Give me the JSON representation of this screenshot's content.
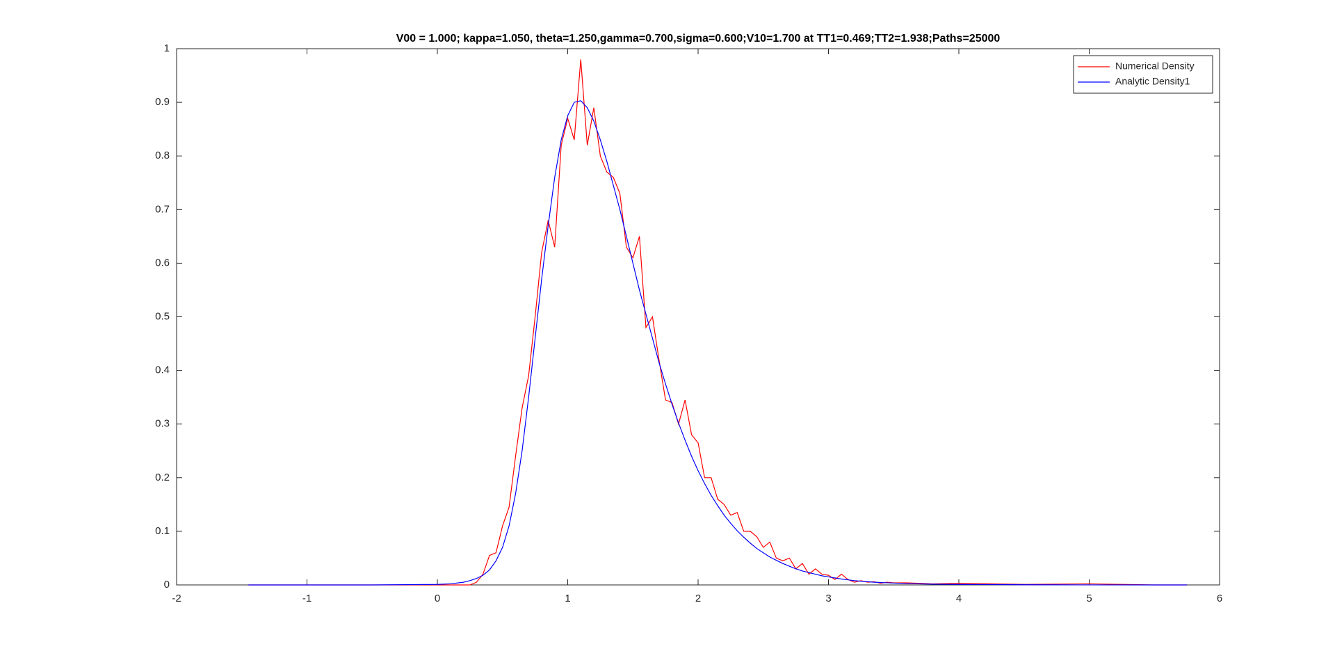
{
  "chart_data": {
    "type": "line",
    "title": "V00 = 1.000; kappa=1.050, theta=1.250,gamma=0.700,sigma=0.600;V10=1.700 at TT1=0.469;TT2=1.938;Paths=25000",
    "x": [
      -1.45,
      -1,
      -0.5,
      0,
      0.1,
      0.2,
      0.25,
      0.3,
      0.35,
      0.4,
      0.45,
      0.5,
      0.55,
      0.6,
      0.65,
      0.7,
      0.75,
      0.8,
      0.85,
      0.9,
      0.95,
      1,
      1.05,
      1.1,
      1.15,
      1.2,
      1.25,
      1.3,
      1.35,
      1.4,
      1.45,
      1.5,
      1.55,
      1.6,
      1.65,
      1.7,
      1.75,
      1.8,
      1.85,
      1.9,
      1.95,
      2,
      2.05,
      2.1,
      2.15,
      2.2,
      2.25,
      2.3,
      2.35,
      2.4,
      2.45,
      2.5,
      2.55,
      2.6,
      2.65,
      2.7,
      2.75,
      2.8,
      2.85,
      2.9,
      2.95,
      3,
      3.05,
      3.1,
      3.15,
      3.2,
      3.25,
      3.3,
      3.35,
      3.4,
      3.45,
      3.5,
      3.6,
      3.8,
      4,
      4.5,
      5,
      5.5,
      5.75
    ],
    "series": [
      {
        "name": "Numerical Density",
        "color": "#ff0000",
        "values": [
          0,
          0,
          0,
          0,
          0,
          0,
          0,
          0.005,
          0.02,
          0.055,
          0.06,
          0.11,
          0.145,
          0.24,
          0.33,
          0.39,
          0.5,
          0.62,
          0.68,
          0.63,
          0.82,
          0.87,
          0.83,
          0.98,
          0.82,
          0.89,
          0.8,
          0.77,
          0.76,
          0.73,
          0.63,
          0.61,
          0.65,
          0.48,
          0.5,
          0.42,
          0.345,
          0.34,
          0.3,
          0.345,
          0.28,
          0.265,
          0.2,
          0.2,
          0.16,
          0.15,
          0.13,
          0.135,
          0.1,
          0.1,
          0.09,
          0.07,
          0.08,
          0.05,
          0.045,
          0.05,
          0.03,
          0.04,
          0.02,
          0.03,
          0.02,
          0.018,
          0.01,
          0.02,
          0.01,
          0.005,
          0.008,
          0.005,
          0.006,
          0.003,
          0.005,
          0.004,
          0.004,
          0.002,
          0.003,
          0.001,
          0.002,
          0,
          0
        ]
      },
      {
        "name": "Analytic Density1",
        "color": "#0000ff",
        "values": [
          0,
          0,
          0,
          0.001,
          0.002,
          0.005,
          0.008,
          0.012,
          0.018,
          0.028,
          0.045,
          0.07,
          0.11,
          0.17,
          0.25,
          0.35,
          0.46,
          0.57,
          0.67,
          0.76,
          0.83,
          0.875,
          0.9,
          0.903,
          0.89,
          0.865,
          0.83,
          0.79,
          0.745,
          0.7,
          0.65,
          0.6,
          0.55,
          0.505,
          0.46,
          0.415,
          0.375,
          0.337,
          0.302,
          0.27,
          0.24,
          0.213,
          0.189,
          0.167,
          0.148,
          0.13,
          0.115,
          0.101,
          0.089,
          0.078,
          0.068,
          0.06,
          0.052,
          0.046,
          0.04,
          0.035,
          0.03,
          0.026,
          0.023,
          0.02,
          0.017,
          0.015,
          0.013,
          0.011,
          0.0095,
          0.008,
          0.007,
          0.006,
          0.005,
          0.0045,
          0.004,
          0.0035,
          0.0025,
          0.0015,
          0.001,
          0.0003,
          0.0001,
          0,
          0
        ]
      }
    ],
    "xlim": [
      -2,
      6
    ],
    "xticks": [
      -2,
      -1,
      0,
      1,
      2,
      3,
      4,
      5,
      6
    ],
    "ylim": [
      0,
      1
    ],
    "yticks": [
      0,
      0.1,
      0.2,
      0.3,
      0.4,
      0.5,
      0.6,
      0.7,
      0.8,
      0.9,
      1
    ],
    "grid": false,
    "legend": "top-right"
  }
}
